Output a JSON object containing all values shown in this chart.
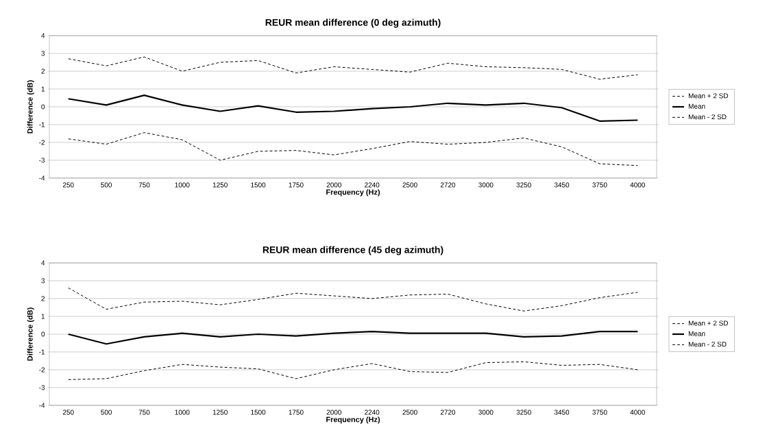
{
  "chart_data": [
    {
      "type": "line",
      "title": "REUR mean difference (0 deg azimuth)",
      "xlabel": "Frequency (Hz)",
      "ylabel": "Difference (dB)",
      "categories": [
        "250",
        "500",
        "750",
        "1000",
        "1250",
        "1500",
        "1750",
        "2000",
        "2240",
        "2500",
        "2720",
        "3000",
        "3250",
        "3450",
        "3750",
        "4000"
      ],
      "series": [
        {
          "name": "Mean + 2 SD",
          "color": "#000000",
          "line_style": "dashed",
          "values": [
            2.7,
            2.3,
            2.8,
            2.0,
            2.5,
            2.6,
            1.9,
            2.25,
            2.1,
            1.95,
            2.45,
            2.25,
            2.2,
            2.1,
            1.55,
            1.8
          ]
        },
        {
          "name": "Mean",
          "color": "#000000",
          "line_style": "solid",
          "values": [
            0.45,
            0.1,
            0.65,
            0.1,
            -0.25,
            0.05,
            -0.3,
            -0.25,
            -0.1,
            0.0,
            0.2,
            0.1,
            0.2,
            -0.05,
            -0.8,
            -0.75
          ]
        },
        {
          "name": "Mean - 2 SD",
          "color": "#000000",
          "line_style": "dashed",
          "values": [
            -1.8,
            -2.1,
            -1.45,
            -1.85,
            -3.0,
            -2.5,
            -2.45,
            -2.7,
            -2.35,
            -1.95,
            -2.1,
            -2.0,
            -1.75,
            -2.25,
            -3.2,
            -3.3
          ]
        }
      ],
      "ylim": [
        -4,
        4
      ],
      "yticks": [
        -4,
        -3,
        -2,
        -1,
        0,
        1,
        2,
        3,
        4
      ],
      "grid": "y",
      "legend": "right",
      "marker": "none"
    },
    {
      "type": "line",
      "title": "REUR mean difference (45 deg azimuth)",
      "xlabel": "Frequency (Hz)",
      "ylabel": "Difference (dB)",
      "categories": [
        "250",
        "500",
        "750",
        "1000",
        "1250",
        "1500",
        "1750",
        "2000",
        "2240",
        "2500",
        "2720",
        "3000",
        "3250",
        "3450",
        "3750",
        "4000"
      ],
      "series": [
        {
          "name": "Mean + 2 SD",
          "color": "#000000",
          "line_style": "dashed",
          "values": [
            2.6,
            1.4,
            1.8,
            1.85,
            1.65,
            1.95,
            2.3,
            2.15,
            2.0,
            2.2,
            2.25,
            1.7,
            1.3,
            1.6,
            2.05,
            2.35
          ]
        },
        {
          "name": "Mean",
          "color": "#000000",
          "line_style": "solid",
          "values": [
            0.0,
            -0.55,
            -0.15,
            0.05,
            -0.15,
            0.0,
            -0.1,
            0.05,
            0.15,
            0.05,
            0.05,
            0.05,
            -0.15,
            -0.1,
            0.15,
            0.15
          ]
        },
        {
          "name": "Mean - 2 SD",
          "color": "#000000",
          "line_style": "dashed",
          "values": [
            -2.55,
            -2.5,
            -2.05,
            -1.7,
            -1.85,
            -1.95,
            -2.5,
            -2.0,
            -1.65,
            -2.1,
            -2.15,
            -1.6,
            -1.55,
            -1.75,
            -1.7,
            -2.0
          ]
        }
      ],
      "ylim": [
        -4,
        4
      ],
      "yticks": [
        -4,
        -3,
        -2,
        -1,
        0,
        1,
        2,
        3,
        4
      ],
      "grid": "y",
      "legend": "right",
      "marker": "none"
    }
  ]
}
